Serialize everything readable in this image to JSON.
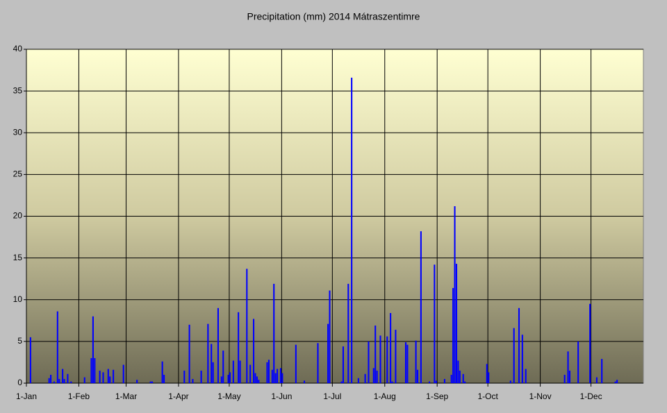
{
  "chart_data": {
    "type": "bar",
    "title": "Precipitation (mm) 2014 Mátraszentimre",
    "x": [
      2,
      13,
      14,
      16,
      18,
      19,
      21,
      22,
      24,
      26,
      34,
      38,
      39,
      40,
      43,
      45,
      48,
      49,
      51,
      57,
      65,
      73,
      74,
      80,
      81,
      93,
      96,
      98,
      103,
      107,
      109,
      110,
      113,
      115,
      116,
      119,
      120,
      122,
      125,
      126,
      130,
      132,
      134,
      135,
      136,
      137,
      142,
      143,
      145,
      146,
      147,
      148,
      150,
      151,
      159,
      164,
      172,
      178,
      179,
      186,
      187,
      190,
      192,
      196,
      200,
      202,
      205,
      206,
      207,
      209,
      213,
      215,
      216,
      218,
      224,
      225,
      230,
      231,
      233,
      238,
      241,
      242,
      247,
      251,
      252,
      253,
      254,
      255,
      256,
      258,
      259,
      272,
      273,
      286,
      288,
      291,
      293,
      295,
      318,
      320,
      321,
      326,
      333,
      337,
      340,
      348,
      349
    ],
    "values": [
      5.5,
      0.6,
      1.0,
      0.2,
      8.6,
      0.5,
      1.7,
      0.5,
      1.1,
      0.2,
      0.7,
      3.0,
      8.0,
      3.0,
      1.5,
      1.3,
      1.7,
      0.8,
      1.6,
      2.2,
      0.4,
      0.2,
      0.2,
      2.6,
      1.0,
      1.5,
      7.0,
      0.5,
      1.5,
      7.1,
      4.7,
      2.5,
      9.0,
      0.8,
      3.9,
      1.0,
      1.3,
      2.7,
      8.5,
      2.7,
      13.7,
      2.2,
      7.7,
      1.2,
      0.8,
      0.4,
      2.5,
      2.8,
      1.6,
      11.9,
      1.2,
      1.7,
      1.8,
      1.2,
      4.6,
      0.3,
      4.8,
      7.1,
      11.1,
      0.2,
      4.4,
      11.9,
      36.6,
      0.6,
      1.1,
      5.0,
      1.8,
      6.9,
      1.5,
      5.7,
      5.6,
      8.4,
      0.2,
      6.4,
      4.9,
      4.6,
      5.1,
      1.6,
      18.2,
      0.2,
      14.2,
      0.3,
      0.5,
      1.0,
      11.4,
      21.2,
      14.3,
      2.7,
      1.5,
      1.1,
      0.2,
      2.3,
      1.3,
      0.3,
      6.6,
      9.0,
      5.8,
      1.7,
      1.0,
      3.8,
      1.5,
      5.0,
      9.5,
      0.7,
      2.9,
      0.2,
      0.4
    ],
    "color": "#0000ff",
    "xlim": [
      0,
      365
    ],
    "xticks": [
      {
        "value": 0,
        "label": "1-Jan"
      },
      {
        "value": 31,
        "label": "1-Feb"
      },
      {
        "value": 59,
        "label": "1-Mar"
      },
      {
        "value": 90,
        "label": "1-Apr"
      },
      {
        "value": 120,
        "label": "1-May"
      },
      {
        "value": 151,
        "label": "1-Jun"
      },
      {
        "value": 181,
        "label": "1-Jul"
      },
      {
        "value": 212,
        "label": "1-Aug"
      },
      {
        "value": 243,
        "label": "1-Sep"
      },
      {
        "value": 273,
        "label": "1-Oct"
      },
      {
        "value": 304,
        "label": "1-Nov"
      },
      {
        "value": 334,
        "label": "1-Dec"
      }
    ],
    "ylim": [
      0,
      40
    ],
    "yticks": [
      0,
      5,
      10,
      15,
      20,
      25,
      30,
      35,
      40
    ],
    "grid": true
  }
}
